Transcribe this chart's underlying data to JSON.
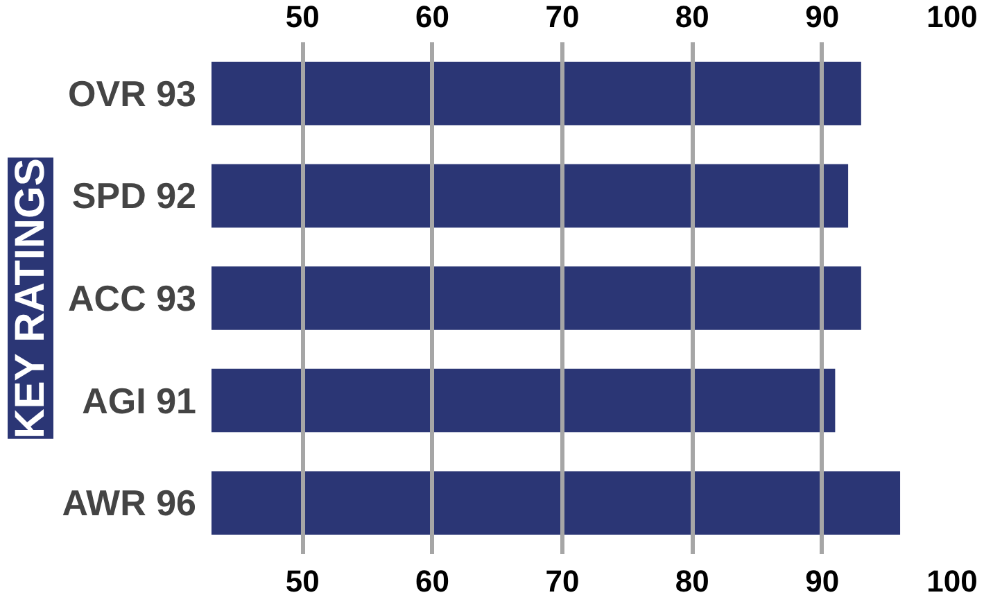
{
  "chart_data": {
    "type": "bar",
    "orientation": "horizontal",
    "title": "KEY RATINGS",
    "categories": [
      "OVR 93",
      "SPD 92",
      "ACC 93",
      "AGI 91",
      "AWR 96"
    ],
    "values": [
      93,
      92,
      93,
      91,
      96
    ],
    "color": "#2b3675",
    "xlim": [
      43,
      100
    ],
    "xticks": [
      50,
      60,
      70,
      80,
      90,
      100
    ],
    "x2lim": [
      43,
      100
    ],
    "x2ticks": [
      50,
      60,
      70,
      80,
      90,
      100
    ],
    "grid": "x"
  }
}
